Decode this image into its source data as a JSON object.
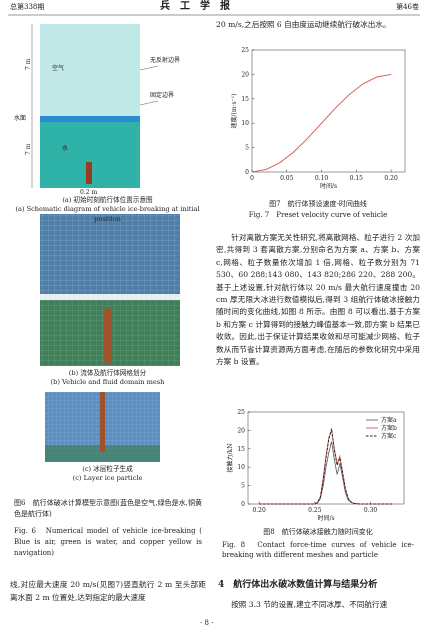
{
  "header": {
    "issue": "总第338期",
    "journal": "兵　工　学　报",
    "volume": "第46卷"
  },
  "left_column": {
    "figure6": {
      "a": {
        "labels": {
          "air": "空气",
          "non_reflecting": "无反射边界",
          "fixed": "固定边界",
          "water_surface": "水面",
          "water": "水",
          "dim_upper": "7 m",
          "dim_lower": "7 m",
          "dim_vehicle": "0.2 m"
        },
        "caption_cn": "(a) 初始时刻航行体位置示意图",
        "caption_en": "(a) Schematic diagram of vehicle ice-breaking at initial position"
      },
      "b": {
        "caption_cn": "(b) 流体及航行体网格划分",
        "caption_en": "(b) Vehicle and fluid domain mesh"
      },
      "c": {
        "caption_cn": "(c) 冰层粒子生成",
        "caption_en": "(c) Layer ice particle"
      },
      "caption_cn": "图6　航行体破冰计算模型示意图(蓝色是空气,绿色是水,铜黄色是航行体)",
      "caption_en": "Fig. 6　Numerical model of vehicle ice-breaking ( Blue is air, green is water, and copper yellow is navigation)"
    },
    "text": "线,对应最大速度 20 m/s(见图7)竖直航行 2 m 至头部距离水面 2 m 位置处,达到指定的最大速度"
  },
  "right_column": {
    "text_top": "20 m/s,之后按照 6 自由度运动继续航行破冰出水。",
    "figure7": {
      "chart": {
        "type": "line",
        "x_label": "时间/s",
        "y_label": "速度/(m·s⁻¹)",
        "x": [
          0,
          0.02,
          0.04,
          0.06,
          0.08,
          0.1,
          0.12,
          0.14,
          0.16,
          0.18,
          0.2
        ],
        "series": [
          {
            "color": "#d9534f",
            "values": [
              0,
              0.5,
              1.9,
              4.1,
              6.9,
              10,
              13.1,
              15.9,
              18.1,
              19.5,
              20
            ]
          }
        ],
        "xlim": [
          0,
          0.22
        ],
        "xticks": [
          0,
          0.05,
          {
            "value": 0.1,
            "label": "0.10"
          },
          0.15,
          {
            "value": 0.2,
            "label": "0.20"
          }
        ],
        "ylim": [
          0,
          25
        ],
        "yticks": [
          0,
          5,
          10,
          15,
          20,
          25
        ]
      },
      "caption_cn": "图7　航行体预设速度-时间曲线",
      "caption_en": "Fig. 7　Preset velocity curve of vehicle"
    },
    "paragraph": "针对离散方案无关性研究,将离散网格、粒子进行 2 次加密,共得到 3 套离散方案,分别命名为方案 a、方案 b、方案 c,网格、粒子数量依次增加 1 倍,网格、粒子数分别为 71 530、60 288;143 080、143 820;286 220、288 200。基于上述设置,针对航行体以 20 m/s 最大航行速度撞击 20 cm 厚无限大冰进行数值模拟后,得到 3 组航行体破冰接触力随时间的变化曲线,如图 8 所示。由图 8 可以看出,基于方案 b 和方案 c 计算得到的接触力峰值基本一致,即方案 b 结果已收敛。因此,出于保证计算结果收敛和尽可能减少网格、粒子数从而节省计算资源两方面考虑,在随后的参数化研究中采用方案 b 设置。",
    "figure8": {
      "chart": {
        "type": "line",
        "x_label": "时间/s",
        "y_label": "接触力/kN",
        "legend": "upper right",
        "x": [
          0.2,
          0.25,
          0.2525,
          0.255,
          0.2575,
          0.26,
          0.2625,
          0.265,
          0.2675,
          0.27,
          0.2725,
          0.275,
          0.2775,
          0.28,
          0.2825,
          0.285,
          0.29,
          0.32
        ],
        "series": [
          {
            "name": "方案a",
            "color": "#666666",
            "style": "solid",
            "values": [
              0,
              0,
              0.3,
              1.5,
              5,
              10,
              14,
              17,
              12,
              8,
              11,
              7,
              3,
              1,
              0.5,
              0.2,
              0,
              0
            ]
          },
          {
            "name": "方案b",
            "color": "#d9534f",
            "style": "solid",
            "values": [
              0,
              0,
              0.5,
              2,
              7,
              13,
              18,
              20,
              15,
              11,
              13,
              8,
              4,
              1.5,
              0.5,
              0.2,
              0,
              0
            ]
          },
          {
            "name": "方案c",
            "color": "#222222",
            "style": "dashed",
            "values": [
              0,
              0,
              0.5,
              2,
              6.5,
              12.5,
              17.5,
              20.5,
              14.5,
              10.5,
              12.5,
              8.5,
              4,
              1.5,
              0.5,
              0.2,
              0,
              0
            ]
          }
        ],
        "xlim": [
          0.19,
          0.33
        ],
        "xticks": [
          {
            "value": 0.2,
            "label": "0.20"
          },
          0.25,
          {
            "value": 0.3,
            "label": "0.30"
          }
        ],
        "ylim": [
          0,
          25
        ],
        "yticks": [
          0,
          5,
          10,
          15,
          20,
          25
        ]
      },
      "caption_cn": "图8　航行体破冰接触力随时间变化",
      "caption_en": "Fig. 8　Contact force-time curves of vehicle ice-breaking with different meshes and particle"
    },
    "section_heading": "4　航行体出水破冰数值计算与结果分析",
    "text_bottom": "按照 3.3 节的设置,建立不同冰厚、不同航行速"
  },
  "page_number": "· 8 ·"
}
